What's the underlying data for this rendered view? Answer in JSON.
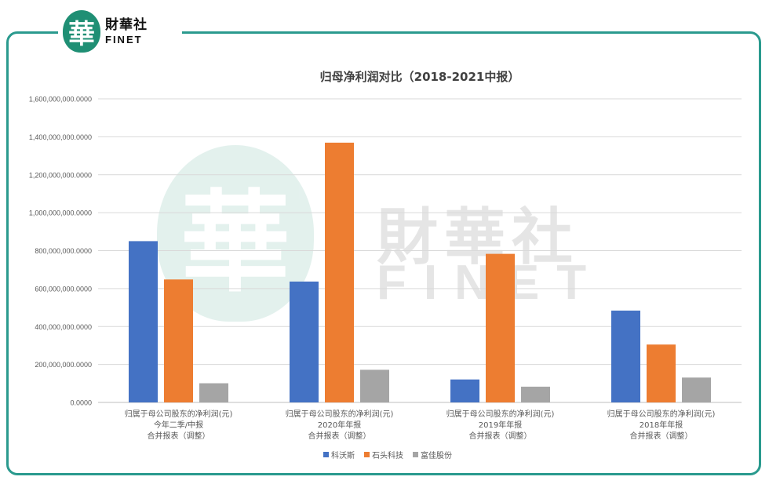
{
  "brand": {
    "logo_glyph": "華",
    "name_cn": "財華社",
    "name_en": "FINET",
    "accent_color": "#2a9a8e"
  },
  "chart_data": {
    "type": "bar",
    "title": "归母净利润对比（2018-2021中报）",
    "categories": [
      [
        "归属于母公司股东的净利润(元)",
        "今年二季/中报",
        "合并报表（调整）"
      ],
      [
        "归属于母公司股东的净利润(元)",
        "2020年年报",
        "合并报表（调整）"
      ],
      [
        "归属于母公司股东的净利润(元)",
        "2019年年报",
        "合并报表（调整）"
      ],
      [
        "归属于母公司股东的净利润(元)",
        "2018年年报",
        "合并报表（调整）"
      ]
    ],
    "series": [
      {
        "name": "科沃斯",
        "color": "#4472c4",
        "values": [
          850000000,
          637000000,
          121000000,
          484000000
        ]
      },
      {
        "name": "石头科技",
        "color": "#ed7d31",
        "values": [
          648000000,
          1369000000,
          783000000,
          305000000
        ]
      },
      {
        "name": "富佳股份",
        "color": "#a5a5a5",
        "values": [
          101000000,
          172000000,
          83000000,
          131000000
        ]
      }
    ],
    "ylim": [
      0,
      1600000000
    ],
    "yticks": [
      {
        "value": 0,
        "label": "0.0000"
      },
      {
        "value": 200000000,
        "label": "200,000,000.0000"
      },
      {
        "value": 400000000,
        "label": "400,000,000.0000"
      },
      {
        "value": 600000000,
        "label": "600,000,000.0000"
      },
      {
        "value": 800000000,
        "label": "800,000,000.0000"
      },
      {
        "value": 1000000000,
        "label": "1,000,000,000.0000"
      },
      {
        "value": 1200000000,
        "label": "1,200,000,000.0000"
      },
      {
        "value": 1400000000,
        "label": "1,400,000,000.0000"
      },
      {
        "value": 1600000000,
        "label": "1,600,000,000.0000"
      }
    ],
    "grid": true,
    "legend_position": "bottom"
  }
}
